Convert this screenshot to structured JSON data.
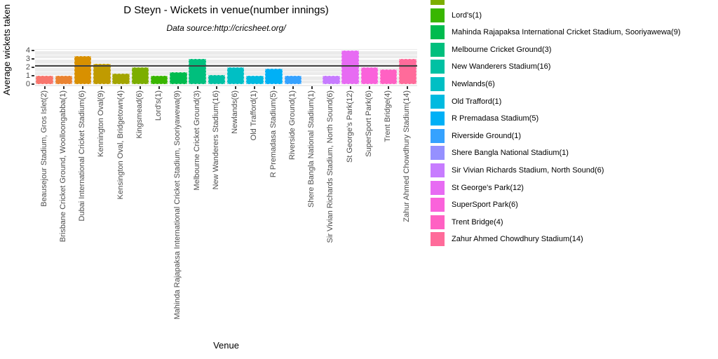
{
  "chart_data": {
    "type": "bar",
    "title": "D Steyn - Wickets in venue(number innings)",
    "subtitle": "Data source:http://cricsheet.org/",
    "xlabel": "Venue",
    "ylabel": "Average wickets taken",
    "ylim": [
      0,
      4.2
    ],
    "yticks": [
      0,
      1,
      2,
      3,
      4
    ],
    "grid": "white major and minor horizontal gridlines on grey panel",
    "legend_position": "right",
    "reference_line": {
      "value": 2.13,
      "color": "#404040"
    },
    "categories": [
      "Beausejour Stadium, Gros Islet(2)",
      "Brisbane Cricket Ground, Woolloongabba(1)",
      "Dubai International Cricket Stadium(6)",
      "Kennington Oval(9)",
      "Kensington Oval, Bridgetown(4)",
      "Kingsmead(6)",
      "Lord's(1)",
      "Mahinda Rajapaksa International Cricket Stadium, Sooriyawewa(9)",
      "Melbourne Cricket Ground(3)",
      "New Wanderers Stadium(16)",
      "Newlands(6)",
      "Old Trafford(1)",
      "R Premadasa Stadium(5)",
      "Riverside Ground(1)",
      "Shere Bangla National Stadium(1)",
      "Sir Vivian Richards Stadium, North Sound(6)",
      "St George's Park(12)",
      "SuperSport Park(6)",
      "Trent Bridge(4)",
      "Zahur Ahmed Chowdhury Stadium(14)"
    ],
    "values": [
      1.0,
      1.0,
      3.33,
      2.44,
      1.25,
      2.0,
      1.0,
      1.44,
      3.0,
      1.125,
      2.0,
      1.0,
      1.8,
      1.0,
      0,
      1.0,
      4.0,
      2.0,
      1.75,
      3.0
    ],
    "colors": [
      "#F8766D",
      "#EA8331",
      "#D89000",
      "#C09B00",
      "#A3A500",
      "#7CAE00",
      "#39B600",
      "#00BB4E",
      "#00BF7D",
      "#00C1A3",
      "#00BFC4",
      "#00BAE0",
      "#00B0F6",
      "#35A2FF",
      "#9590FF",
      "#C77CFF",
      "#E76BF3",
      "#FA62DB",
      "#FF61C3",
      "#FF6B9A"
    ],
    "legend_items_visible": [
      {
        "label": "",
        "color": "#7CAE00"
      },
      {
        "label": "Lord's(1)",
        "color": "#39B600"
      },
      {
        "label": "Mahinda Rajapaksa International Cricket Stadium, Sooriyawewa(9)",
        "color": "#00BB4E"
      },
      {
        "label": "Melbourne Cricket Ground(3)",
        "color": "#00BF7D"
      },
      {
        "label": "New Wanderers Stadium(16)",
        "color": "#00C1A3"
      },
      {
        "label": "Newlands(6)",
        "color": "#00BFC4"
      },
      {
        "label": "Old Trafford(1)",
        "color": "#00BAE0"
      },
      {
        "label": "R Premadasa Stadium(5)",
        "color": "#00B0F6"
      },
      {
        "label": "Riverside Ground(1)",
        "color": "#35A2FF"
      },
      {
        "label": "Shere Bangla National Stadium(1)",
        "color": "#9590FF"
      },
      {
        "label": "Sir Vivian Richards Stadium, North Sound(6)",
        "color": "#C77CFF"
      },
      {
        "label": "St George's Park(12)",
        "color": "#E76BF3"
      },
      {
        "label": "SuperSport Park(6)",
        "color": "#FA62DB"
      },
      {
        "label": "Trent Bridge(4)",
        "color": "#FF61C3"
      },
      {
        "label": "Zahur Ahmed Chowdhury Stadium(14)",
        "color": "#FF6B9A"
      }
    ],
    "panel_colors": {
      "background": "#EBEBEB",
      "gridline": "#FFFFFF",
      "axis_text": "#4D4D4D",
      "tick": "#333333"
    }
  }
}
